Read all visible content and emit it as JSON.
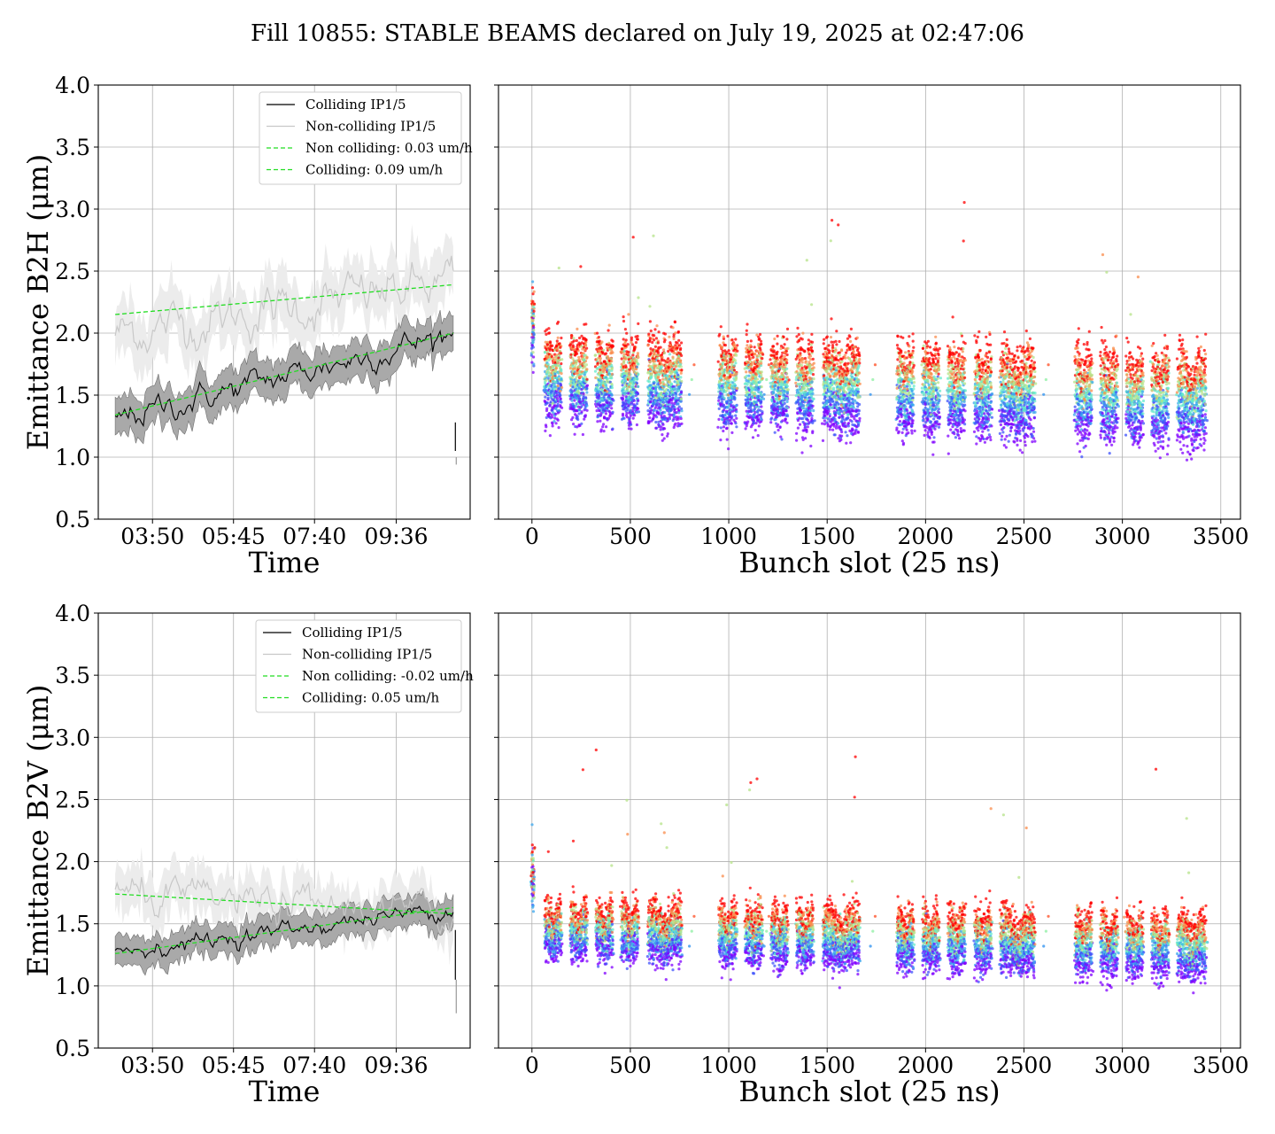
{
  "figure_title": "Fill 10855: STABLE BEAMS declared on July 19, 2025 at 02:47:06",
  "colors": {
    "colliding": "#000000",
    "non_colliding": "#c8c8c8",
    "colliding_band": "#a9a9a9",
    "non_colliding_band": "#ececec",
    "fit": "#22dd22",
    "grid": "#b0b0b0"
  },
  "chart_data": [
    {
      "type": "line",
      "title": "",
      "xlabel": "Time",
      "ylabel": "Emittance B2H (μm)",
      "ylim": [
        0.5,
        4.0
      ],
      "yticks": [
        "0.5",
        "1.0",
        "1.5",
        "2.0",
        "2.5",
        "3.0",
        "3.5",
        "4.0"
      ],
      "xlim_hours": [
        2.55,
        11.35
      ],
      "xticks": [
        {
          "label": "03:50",
          "h": 3.833
        },
        {
          "label": "05:45",
          "h": 5.75
        },
        {
          "label": "07:40",
          "h": 7.667
        },
        {
          "label": "09:36",
          "h": 9.6
        }
      ],
      "grid": true,
      "legend_position": "upper-right",
      "legend": [
        "Colliding IP1/5",
        "Non-colliding IP1/5",
        "Non colliding: 0.03 um/h",
        "Colliding: 0.09 um/h"
      ],
      "series": [
        {
          "name": "Colliding IP1/5",
          "kind": "line",
          "x_start_h": 2.95,
          "x_end_h": 10.95,
          "y_start": 1.3,
          "y_end": 2.0,
          "band": 0.15
        },
        {
          "name": "Non-colliding IP1/5",
          "kind": "line",
          "x_start_h": 2.95,
          "x_end_h": 10.95,
          "y_start": 2.0,
          "y_end": 2.4,
          "band": 0.22
        },
        {
          "name": "Non colliding: 0.03 um/h",
          "kind": "fit",
          "x_start_h": 2.95,
          "x_end_h": 10.95,
          "y_start": 2.15,
          "y_end": 2.39
        },
        {
          "name": "Colliding: 0.09 um/h",
          "kind": "fit",
          "x_start_h": 2.95,
          "x_end_h": 10.95,
          "y_start": 1.34,
          "y_end": 2.0
        }
      ]
    },
    {
      "type": "scatter",
      "title": "",
      "xlabel": "Bunch slot (25 ns)",
      "ylabel": "",
      "ylim": [
        0.5,
        4.0
      ],
      "xlim": [
        -170,
        3600
      ],
      "xticks": [
        "0",
        "500",
        "1000",
        "1500",
        "2000",
        "2500",
        "3000",
        "3500"
      ],
      "grid": true,
      "color_map": "rainbow (violet = early, red = late)",
      "trains": [
        [
          0,
          10
        ],
        [
          65,
          150
        ],
        [
          195,
          280
        ],
        [
          325,
          410
        ],
        [
          455,
          540
        ],
        [
          590,
          760
        ],
        [
          950,
          1040
        ],
        [
          1085,
          1170
        ],
        [
          1215,
          1300
        ],
        [
          1345,
          1430
        ],
        [
          1480,
          1665
        ],
        [
          1855,
          1940
        ],
        [
          1985,
          2070
        ],
        [
          2115,
          2200
        ],
        [
          2250,
          2335
        ],
        [
          2380,
          2555
        ],
        [
          2760,
          2845
        ],
        [
          2890,
          2975
        ],
        [
          3020,
          3105
        ],
        [
          3150,
          3235
        ],
        [
          3280,
          3425
        ]
      ],
      "levels": {
        "early_start": 1.4,
        "early_end": 1.2,
        "late_start": 1.85,
        "late_end": 1.72,
        "spread": 0.09
      }
    },
    {
      "type": "line",
      "title": "",
      "xlabel": "Time",
      "ylabel": "Emittance B2V (μm)",
      "ylim": [
        0.5,
        4.0
      ],
      "yticks": [
        "0.5",
        "1.0",
        "1.5",
        "2.0",
        "2.5",
        "3.0",
        "3.5",
        "4.0"
      ],
      "xlim_hours": [
        2.55,
        11.35
      ],
      "xticks": [
        {
          "label": "03:50",
          "h": 3.833
        },
        {
          "label": "05:45",
          "h": 5.75
        },
        {
          "label": "07:40",
          "h": 7.667
        },
        {
          "label": "09:36",
          "h": 9.6
        }
      ],
      "grid": true,
      "legend_position": "upper-right",
      "legend": [
        "Colliding IP1/5",
        "Non-colliding IP1/5",
        "Non colliding: -0.02 um/h",
        "Colliding: 0.05 um/h"
      ],
      "series": [
        {
          "name": "Colliding IP1/5",
          "kind": "line",
          "x_start_h": 2.95,
          "x_end_h": 10.95,
          "y_start": 1.27,
          "y_end": 1.63,
          "band": 0.12
        },
        {
          "name": "Non-colliding IP1/5",
          "kind": "line",
          "x_start_h": 2.95,
          "x_end_h": 10.95,
          "y_start": 1.72,
          "y_end": 1.58,
          "band": 0.18
        },
        {
          "name": "Non colliding: -0.02 um/h",
          "kind": "fit",
          "x_start_h": 2.95,
          "x_end_h": 10.95,
          "y_start": 1.74,
          "y_end": 1.58
        },
        {
          "name": "Colliding: 0.05 um/h",
          "kind": "fit",
          "x_start_h": 2.95,
          "x_end_h": 10.95,
          "y_start": 1.26,
          "y_end": 1.63
        }
      ]
    },
    {
      "type": "scatter",
      "title": "",
      "xlabel": "Bunch slot (25 ns)",
      "ylabel": "",
      "ylim": [
        0.5,
        4.0
      ],
      "xlim": [
        -170,
        3600
      ],
      "xticks": [
        "0",
        "500",
        "1000",
        "1500",
        "2000",
        "2500",
        "3000",
        "3500"
      ],
      "grid": true,
      "color_map": "rainbow (violet = early, red = late)",
      "trains": [
        [
          0,
          10
        ],
        [
          65,
          150
        ],
        [
          195,
          280
        ],
        [
          325,
          410
        ],
        [
          455,
          540
        ],
        [
          590,
          760
        ],
        [
          950,
          1040
        ],
        [
          1085,
          1170
        ],
        [
          1215,
          1300
        ],
        [
          1345,
          1430
        ],
        [
          1480,
          1665
        ],
        [
          1855,
          1940
        ],
        [
          1985,
          2070
        ],
        [
          2115,
          2200
        ],
        [
          2250,
          2335
        ],
        [
          2380,
          2555
        ],
        [
          2760,
          2845
        ],
        [
          2890,
          2975
        ],
        [
          3020,
          3105
        ],
        [
          3150,
          3235
        ],
        [
          3280,
          3425
        ]
      ],
      "levels": {
        "early_start": 1.3,
        "early_end": 1.13,
        "late_start": 1.58,
        "late_end": 1.48,
        "spread": 0.07
      }
    }
  ]
}
